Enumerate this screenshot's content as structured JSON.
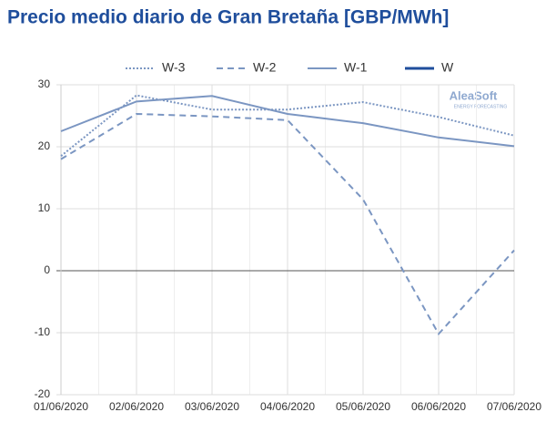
{
  "chart_data": {
    "type": "line",
    "title": "Precio medio diario de Gran Bretaña [GBP/MWh]",
    "watermark": "AleaSoft",
    "watermark_sub": "ENERGY FORECASTING",
    "categories": [
      "01/06/2020",
      "02/06/2020",
      "03/06/2020",
      "04/06/2020",
      "05/06/2020",
      "06/06/2020",
      "07/06/2020"
    ],
    "series": [
      {
        "name": "W-3",
        "color": "#7b96c2",
        "style": "dotted",
        "values": [
          18.5,
          28.3,
          26,
          26,
          27.2,
          24.8,
          21.8
        ]
      },
      {
        "name": "W-2",
        "color": "#7b96c2",
        "style": "dashed",
        "values": [
          18,
          25.3,
          24.9,
          24.3,
          11.5,
          -10.2,
          3.3
        ]
      },
      {
        "name": "W-1",
        "color": "#7b96c2",
        "style": "solid",
        "values": [
          22.5,
          27.3,
          28.2,
          25.3,
          23.8,
          21.5,
          20.1
        ]
      },
      {
        "name": "W",
        "color": "#1f4e9c",
        "style": "solid",
        "values": [
          null,
          null,
          null,
          null,
          null,
          null,
          null
        ]
      }
    ],
    "ylim": [
      -20,
      30
    ],
    "yticks": [
      -20,
      -10,
      0,
      10,
      20,
      30
    ],
    "grid": true,
    "legend": "top"
  }
}
